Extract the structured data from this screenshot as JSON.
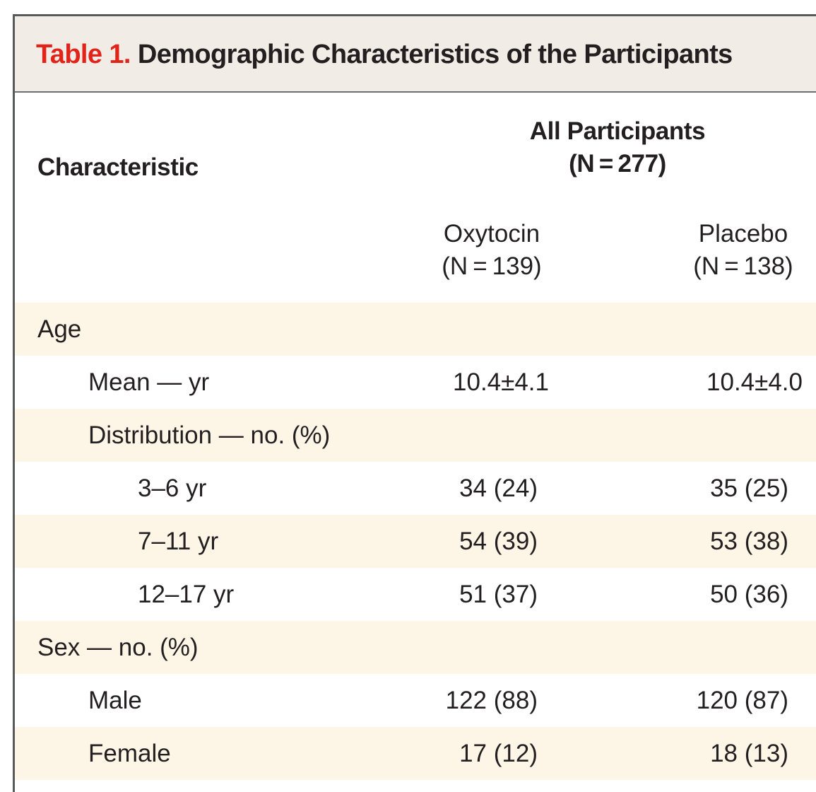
{
  "table": {
    "label": "Table 1.",
    "title": "Demographic Characteristics of the Participants",
    "header": {
      "characteristic": "Characteristic",
      "group_title_line1": "All Participants",
      "group_title_line2": "(N = 277)",
      "col_oxytocin_line1": "Oxytocin",
      "col_oxytocin_line2": "(N = 139)",
      "col_placebo_line1": "Placebo",
      "col_placebo_line2": "(N = 138)"
    },
    "rows": [
      {
        "label": "Age",
        "oxytocin": "",
        "placebo": ""
      },
      {
        "label": "Mean — yr",
        "oxytocin": "10.4±4.1",
        "placebo": "10.4±4.0"
      },
      {
        "label": "Distribution — no. (%)",
        "oxytocin": "",
        "placebo": ""
      },
      {
        "label": "3–6 yr",
        "oxytocin": "34 (24)",
        "placebo": "35 (25)"
      },
      {
        "label": "7–11 yr",
        "oxytocin": "54 (39)",
        "placebo": "53 (38)"
      },
      {
        "label": "12–17 yr",
        "oxytocin": "51 (37)",
        "placebo": "50 (36)"
      },
      {
        "label": "Sex — no. (%)",
        "oxytocin": "",
        "placebo": ""
      },
      {
        "label": "Male",
        "oxytocin": "122 (88)",
        "placebo": "120 (87)"
      },
      {
        "label": "Female",
        "oxytocin": "17 (12)",
        "placebo": "18 (13)"
      }
    ]
  },
  "colors": {
    "label_red": "#e2231a",
    "title_bar_bg": "#f1ede6",
    "row_shade": "#fdf5e6",
    "text": "#231f20"
  }
}
